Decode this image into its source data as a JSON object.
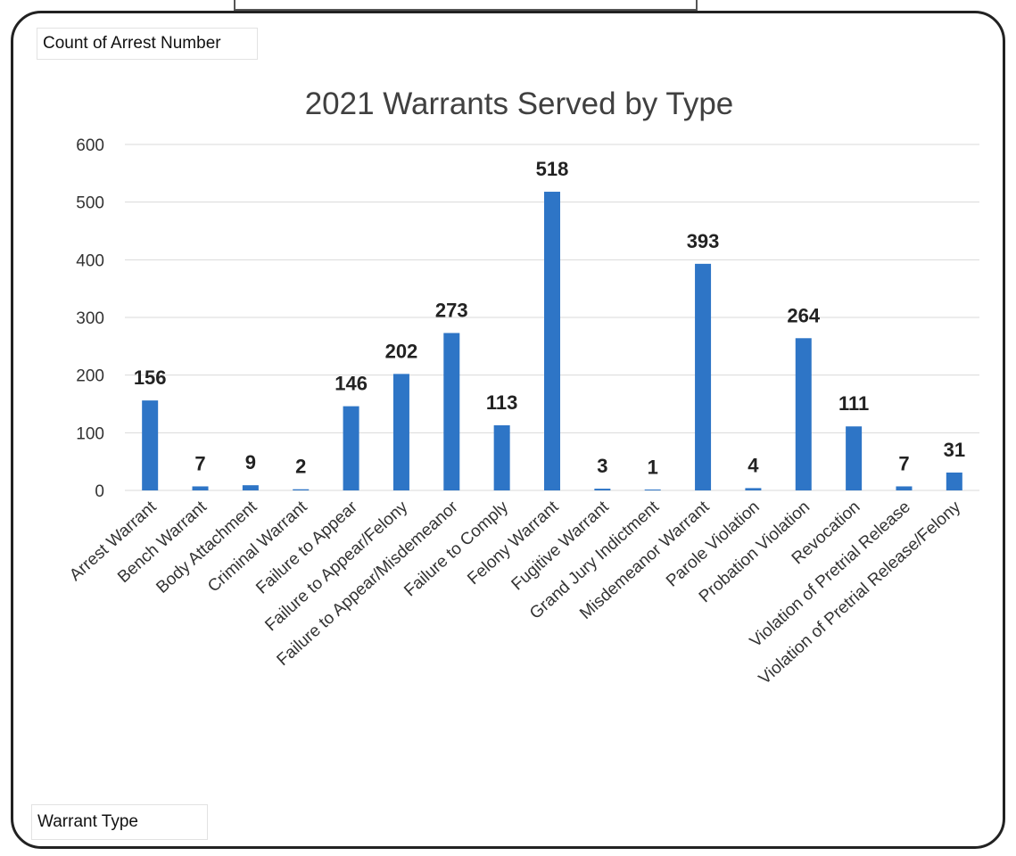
{
  "pivot": {
    "value_field": "Count of Arrest Number",
    "axis_field": "Warrant Type"
  },
  "colors": {
    "bar": "#2e75c6",
    "grid": "#d9d9d9",
    "text": "#222222"
  },
  "chart_data": {
    "type": "bar",
    "title": "2021 Warrants Served by Type",
    "xlabel": "",
    "ylabel": "",
    "ylim": [
      0,
      600
    ],
    "yticks": [
      0,
      100,
      200,
      300,
      400,
      500,
      600
    ],
    "grid": true,
    "categories": [
      "Arrest Warrant",
      "Bench Warrant",
      "Body Attachment",
      "Criminal Warrant",
      "Failure to Appear",
      "Failure to Appear/Felony",
      "Failure to Appear/Misdemeanor",
      "Failure to Comply",
      "Felony Warrant",
      "Fugitive Warrant",
      "Grand Jury Indictment",
      "Misdemeanor Warrant",
      "Parole Violation",
      "Probation Violation",
      "Revocation",
      "Violation of Pretrial Release",
      "Violation of Pretrial Release/Felony"
    ],
    "values": [
      156,
      7,
      9,
      2,
      146,
      202,
      273,
      113,
      518,
      3,
      1,
      393,
      4,
      264,
      111,
      7,
      31
    ]
  }
}
